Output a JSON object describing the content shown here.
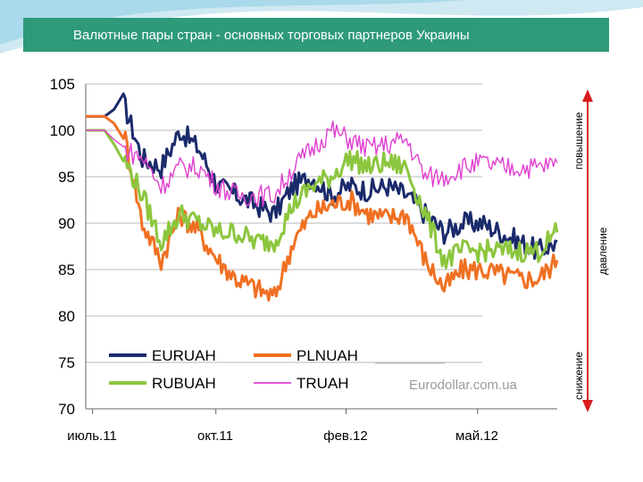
{
  "title": "Валютные пары стран - основных торговых партнеров Украины",
  "watermark": "Eurodollar.com.ua",
  "side_labels": {
    "up": "повышение",
    "pressure": "давление",
    "down": "снижение"
  },
  "colors": {
    "title_bar": "#2e9a7a",
    "EURUAH": "#1b2a6b",
    "PLNUAH": "#f07022",
    "RUBUAH": "#8cc63e",
    "TRUAH": "#e040d0",
    "arrow": "#d81e1e"
  },
  "chart_data": {
    "type": "line",
    "title": "Валютные пары стран - основных торговых партнеров Украины",
    "x_ticks": [
      "июль.11",
      "окт.11",
      "фев.12",
      "май.12"
    ],
    "ylim": [
      70,
      105
    ],
    "y_ticks": [
      70,
      75,
      80,
      85,
      90,
      95,
      100,
      105
    ],
    "grid": "horizontal",
    "legend_position": "bottom-left",
    "x": [
      0,
      0.04,
      0.08,
      0.12,
      0.16,
      0.2,
      0.24,
      0.28,
      0.32,
      0.36,
      0.4,
      0.44,
      0.48,
      0.52,
      0.56,
      0.6,
      0.64,
      0.68,
      0.72,
      0.76,
      0.8,
      0.84,
      0.88,
      0.92,
      0.96,
      1.0
    ],
    "series": [
      {
        "name": "EURUAH",
        "values": [
          101.5,
          101.5,
          103,
          97,
          96,
          100,
          98,
          94,
          93,
          92,
          91,
          94,
          95,
          93,
          94,
          93.5,
          94,
          93,
          91,
          89,
          90,
          90,
          89,
          88,
          87,
          88
        ]
      },
      {
        "name": "PLNUAH",
        "values": [
          101.5,
          101.5,
          100,
          90,
          86,
          91,
          89,
          86,
          84,
          83,
          82,
          88,
          91,
          92,
          92.5,
          91,
          90.5,
          91,
          86,
          83,
          85,
          85,
          84.5,
          84,
          84,
          86
        ]
      },
      {
        "name": "RUBUAH",
        "values": [
          100,
          100,
          97,
          93,
          88,
          91,
          90,
          89,
          89,
          88,
          88,
          92,
          94,
          95,
          97,
          96,
          96.5,
          96,
          91,
          86,
          87,
          87,
          87,
          87,
          87,
          89
        ]
      },
      {
        "name": "TRUAH",
        "values": [
          100,
          100,
          98,
          97,
          94,
          96,
          96,
          94,
          93,
          93,
          93,
          96,
          98,
          100,
          99,
          98,
          98.5,
          99,
          95,
          95,
          96,
          96.5,
          96,
          96,
          96,
          96.5
        ]
      }
    ]
  }
}
